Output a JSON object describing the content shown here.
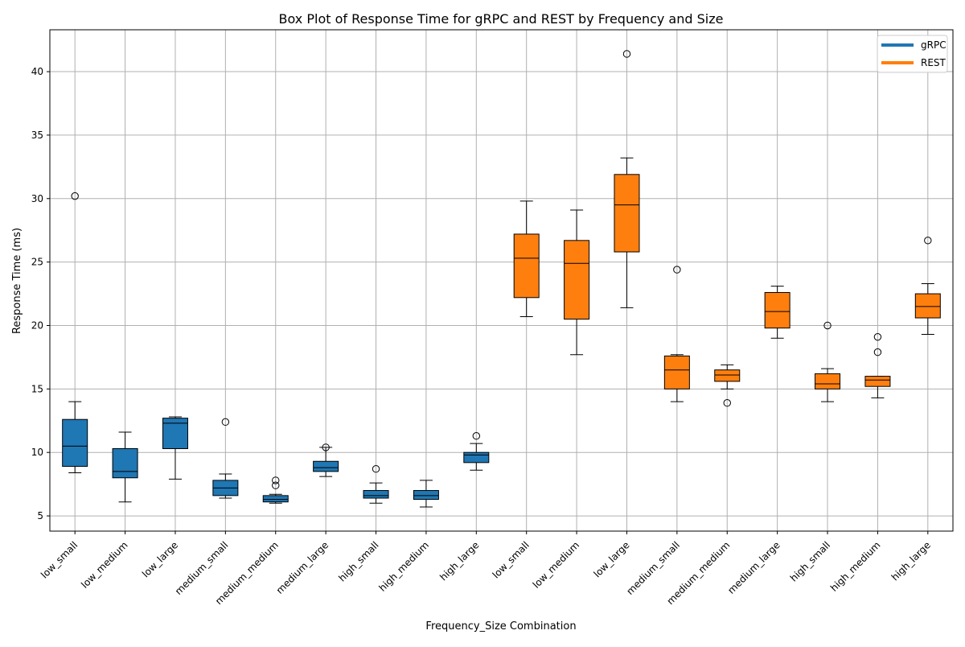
{
  "chart_data": {
    "type": "box",
    "title": "Box Plot of Response Time for gRPC and REST by Frequency and Size",
    "xlabel": "Frequency_Size Combination",
    "ylabel": "Response Time (ms)",
    "ylim": [
      3.8,
      43.3
    ],
    "yticks": [
      5,
      10,
      15,
      20,
      25,
      30,
      35,
      40
    ],
    "grid": true,
    "legend": {
      "placement": "top-right",
      "entries": [
        {
          "label": "gRPC",
          "color": "#1f77b4"
        },
        {
          "label": "REST",
          "color": "#ff7f0e"
        }
      ]
    },
    "categories": [
      "low_small",
      "low_medium",
      "low_large",
      "medium_small",
      "medium_medium",
      "medium_large",
      "high_small",
      "high_medium",
      "high_large",
      "low_small",
      "low_medium",
      "low_large",
      "medium_small",
      "medium_medium",
      "medium_large",
      "high_small",
      "high_medium",
      "high_large"
    ],
    "boxes": [
      {
        "category": "low_small",
        "group": "gRPC",
        "whisker_low": 8.4,
        "q1": 8.9,
        "median": 10.5,
        "q3": 12.6,
        "whisker_high": 14.0,
        "outliers": [
          30.2
        ]
      },
      {
        "category": "low_medium",
        "group": "gRPC",
        "whisker_low": 6.1,
        "q1": 8.0,
        "median": 8.5,
        "q3": 10.3,
        "whisker_high": 11.6,
        "outliers": []
      },
      {
        "category": "low_large",
        "group": "gRPC",
        "whisker_low": 7.9,
        "q1": 10.3,
        "median": 12.3,
        "q3": 12.7,
        "whisker_high": 12.8,
        "outliers": []
      },
      {
        "category": "medium_small",
        "group": "gRPC",
        "whisker_low": 6.4,
        "q1": 6.6,
        "median": 7.2,
        "q3": 7.8,
        "whisker_high": 8.3,
        "outliers": [
          12.4
        ]
      },
      {
        "category": "medium_medium",
        "group": "gRPC",
        "whisker_low": 6.0,
        "q1": 6.1,
        "median": 6.3,
        "q3": 6.6,
        "whisker_high": 6.7,
        "outliers": [
          7.4,
          7.8
        ]
      },
      {
        "category": "medium_large",
        "group": "gRPC",
        "whisker_low": 8.1,
        "q1": 8.5,
        "median": 8.8,
        "q3": 9.3,
        "whisker_high": 10.4,
        "outliers": [
          10.4
        ]
      },
      {
        "category": "high_small",
        "group": "gRPC",
        "whisker_low": 6.0,
        "q1": 6.4,
        "median": 6.6,
        "q3": 7.0,
        "whisker_high": 7.6,
        "outliers": [
          8.7
        ]
      },
      {
        "category": "high_medium",
        "group": "gRPC",
        "whisker_low": 5.7,
        "q1": 6.3,
        "median": 6.6,
        "q3": 7.0,
        "whisker_high": 7.8,
        "outliers": []
      },
      {
        "category": "high_large",
        "group": "gRPC",
        "whisker_low": 8.6,
        "q1": 9.2,
        "median": 9.8,
        "q3": 10.0,
        "whisker_high": 10.7,
        "outliers": [
          11.3
        ]
      },
      {
        "category": "low_small",
        "group": "REST",
        "whisker_low": 20.7,
        "q1": 22.2,
        "median": 25.3,
        "q3": 27.2,
        "whisker_high": 29.8,
        "outliers": []
      },
      {
        "category": "low_medium",
        "group": "REST",
        "whisker_low": 17.7,
        "q1": 20.5,
        "median": 24.9,
        "q3": 26.7,
        "whisker_high": 29.1,
        "outliers": []
      },
      {
        "category": "low_large",
        "group": "REST",
        "whisker_low": 21.4,
        "q1": 25.8,
        "median": 29.5,
        "q3": 31.9,
        "whisker_high": 33.2,
        "outliers": [
          41.4
        ]
      },
      {
        "category": "medium_small",
        "group": "REST",
        "whisker_low": 14.0,
        "q1": 15.0,
        "median": 16.5,
        "q3": 17.6,
        "whisker_high": 17.7,
        "outliers": [
          24.4
        ]
      },
      {
        "category": "medium_medium",
        "group": "REST",
        "whisker_low": 15.0,
        "q1": 15.6,
        "median": 16.1,
        "q3": 16.5,
        "whisker_high": 16.9,
        "outliers": [
          13.9
        ]
      },
      {
        "category": "medium_large",
        "group": "REST",
        "whisker_low": 19.0,
        "q1": 19.8,
        "median": 21.1,
        "q3": 22.6,
        "whisker_high": 23.1,
        "outliers": []
      },
      {
        "category": "high_small",
        "group": "REST",
        "whisker_low": 14.0,
        "q1": 15.0,
        "median": 15.4,
        "q3": 16.2,
        "whisker_high": 16.6,
        "outliers": [
          20.0
        ]
      },
      {
        "category": "high_medium",
        "group": "REST",
        "whisker_low": 14.3,
        "q1": 15.2,
        "median": 15.7,
        "q3": 16.0,
        "whisker_high": 16.0,
        "outliers": [
          17.9,
          19.1
        ]
      },
      {
        "category": "high_large",
        "group": "REST",
        "whisker_low": 19.3,
        "q1": 20.6,
        "median": 21.5,
        "q3": 22.5,
        "whisker_high": 23.3,
        "outliers": [
          26.7
        ]
      }
    ]
  }
}
